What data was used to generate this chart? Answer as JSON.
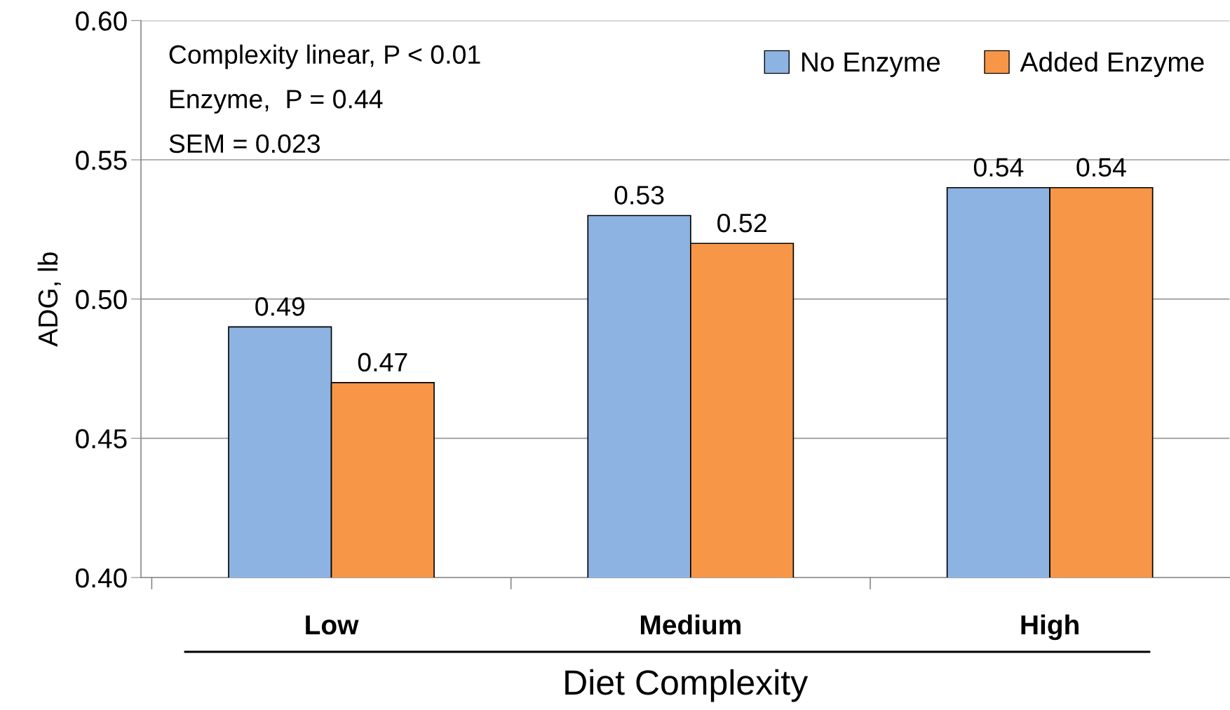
{
  "chart_data": {
    "type": "bar",
    "xlabel": "Diet Complexity",
    "ylabel": "ADG, lb",
    "categories": [
      "Low",
      "Medium",
      "High"
    ],
    "series": [
      {
        "name": "No Enzyme",
        "color": "#8db3e2",
        "values": [
          0.49,
          0.53,
          0.54
        ]
      },
      {
        "name": "Added Enzyme",
        "color": "#f79646",
        "values": [
          0.47,
          0.52,
          0.54
        ]
      }
    ],
    "ylim": [
      0.4,
      0.6
    ],
    "yticks": [
      {
        "value": 0.4,
        "label": "0.40"
      },
      {
        "value": 0.45,
        "label": "0.45"
      },
      {
        "value": 0.5,
        "label": "0.50"
      },
      {
        "value": 0.55,
        "label": "0.55"
      },
      {
        "value": 0.6,
        "label": "0.60"
      }
    ],
    "grid": "y",
    "legend": "top right",
    "data_labels": true,
    "annotations": [
      "Complexity linear, P < 0.01",
      "Enzyme,  P = 0.44",
      "SEM = 0.023"
    ]
  }
}
